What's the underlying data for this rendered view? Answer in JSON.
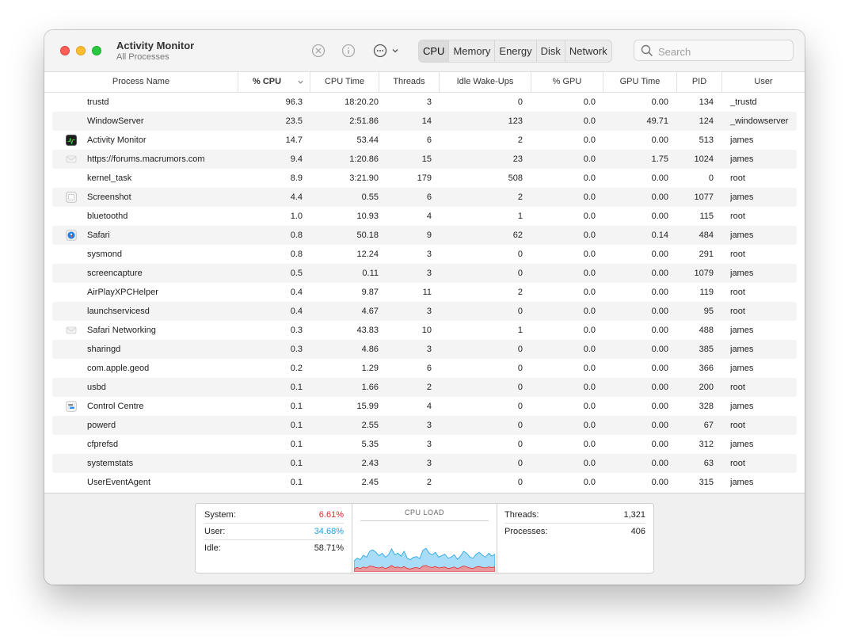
{
  "titlebar": {
    "title": "Activity Monitor",
    "subtitle": "All Processes"
  },
  "toolbar": {
    "icons": [
      "stop-icon",
      "info-icon",
      "more-icon",
      "chevron-down-icon"
    ],
    "tabs": [
      "CPU",
      "Memory",
      "Energy",
      "Disk",
      "Network"
    ],
    "active_tab": "CPU",
    "search_placeholder": "Search"
  },
  "table": {
    "columns": [
      "Process Name",
      "% CPU",
      "CPU Time",
      "Threads",
      "Idle Wake-Ups",
      "% GPU",
      "GPU Time",
      "PID",
      "User"
    ],
    "sorted_column": "% CPU",
    "rows": [
      {
        "name": "trustd",
        "icon": "",
        "cpu": "96.3",
        "time": "18:20.20",
        "threads": "3",
        "wakeups": "0",
        "gpu": "0.0",
        "gputime": "0.00",
        "pid": "134",
        "user": "_trustd"
      },
      {
        "name": "WindowServer",
        "icon": "",
        "cpu": "23.5",
        "time": "2:51.86",
        "threads": "14",
        "wakeups": "123",
        "gpu": "0.0",
        "gputime": "49.71",
        "pid": "124",
        "user": "_windowserver"
      },
      {
        "name": "Activity Monitor",
        "icon": "activity-monitor-icon",
        "cpu": "14.7",
        "time": "53.44",
        "threads": "6",
        "wakeups": "2",
        "gpu": "0.0",
        "gputime": "0.00",
        "pid": "513",
        "user": "james"
      },
      {
        "name": "https://forums.macrumors.com",
        "icon": "web-content-icon",
        "cpu": "9.4",
        "time": "1:20.86",
        "threads": "15",
        "wakeups": "23",
        "gpu": "0.0",
        "gputime": "1.75",
        "pid": "1024",
        "user": "james"
      },
      {
        "name": "kernel_task",
        "icon": "",
        "cpu": "8.9",
        "time": "3:21.90",
        "threads": "179",
        "wakeups": "508",
        "gpu": "0.0",
        "gputime": "0.00",
        "pid": "0",
        "user": "root"
      },
      {
        "name": "Screenshot",
        "icon": "screenshot-icon",
        "cpu": "4.4",
        "time": "0.55",
        "threads": "6",
        "wakeups": "2",
        "gpu": "0.0",
        "gputime": "0.00",
        "pid": "1077",
        "user": "james"
      },
      {
        "name": "bluetoothd",
        "icon": "",
        "cpu": "1.0",
        "time": "10.93",
        "threads": "4",
        "wakeups": "1",
        "gpu": "0.0",
        "gputime": "0.00",
        "pid": "115",
        "user": "root"
      },
      {
        "name": "Safari",
        "icon": "safari-icon",
        "cpu": "0.8",
        "time": "50.18",
        "threads": "9",
        "wakeups": "62",
        "gpu": "0.0",
        "gputime": "0.14",
        "pid": "484",
        "user": "james"
      },
      {
        "name": "sysmond",
        "icon": "",
        "cpu": "0.8",
        "time": "12.24",
        "threads": "3",
        "wakeups": "0",
        "gpu": "0.0",
        "gputime": "0.00",
        "pid": "291",
        "user": "root"
      },
      {
        "name": "screencapture",
        "icon": "",
        "cpu": "0.5",
        "time": "0.11",
        "threads": "3",
        "wakeups": "0",
        "gpu": "0.0",
        "gputime": "0.00",
        "pid": "1079",
        "user": "james"
      },
      {
        "name": "AirPlayXPCHelper",
        "icon": "",
        "cpu": "0.4",
        "time": "9.87",
        "threads": "11",
        "wakeups": "2",
        "gpu": "0.0",
        "gputime": "0.00",
        "pid": "119",
        "user": "root"
      },
      {
        "name": "launchservicesd",
        "icon": "",
        "cpu": "0.4",
        "time": "4.67",
        "threads": "3",
        "wakeups": "0",
        "gpu": "0.0",
        "gputime": "0.00",
        "pid": "95",
        "user": "root"
      },
      {
        "name": "Safari Networking",
        "icon": "web-content-icon",
        "cpu": "0.3",
        "time": "43.83",
        "threads": "10",
        "wakeups": "1",
        "gpu": "0.0",
        "gputime": "0.00",
        "pid": "488",
        "user": "james"
      },
      {
        "name": "sharingd",
        "icon": "",
        "cpu": "0.3",
        "time": "4.86",
        "threads": "3",
        "wakeups": "0",
        "gpu": "0.0",
        "gputime": "0.00",
        "pid": "385",
        "user": "james"
      },
      {
        "name": "com.apple.geod",
        "icon": "",
        "cpu": "0.2",
        "time": "1.29",
        "threads": "6",
        "wakeups": "0",
        "gpu": "0.0",
        "gputime": "0.00",
        "pid": "366",
        "user": "james"
      },
      {
        "name": "usbd",
        "icon": "",
        "cpu": "0.1",
        "time": "1.66",
        "threads": "2",
        "wakeups": "0",
        "gpu": "0.0",
        "gputime": "0.00",
        "pid": "200",
        "user": "root"
      },
      {
        "name": "Control Centre",
        "icon": "control-centre-icon",
        "cpu": "0.1",
        "time": "15.99",
        "threads": "4",
        "wakeups": "0",
        "gpu": "0.0",
        "gputime": "0.00",
        "pid": "328",
        "user": "james"
      },
      {
        "name": "powerd",
        "icon": "",
        "cpu": "0.1",
        "time": "2.55",
        "threads": "3",
        "wakeups": "0",
        "gpu": "0.0",
        "gputime": "0.00",
        "pid": "67",
        "user": "root"
      },
      {
        "name": "cfprefsd",
        "icon": "",
        "cpu": "0.1",
        "time": "5.35",
        "threads": "3",
        "wakeups": "0",
        "gpu": "0.0",
        "gputime": "0.00",
        "pid": "312",
        "user": "james"
      },
      {
        "name": "systemstats",
        "icon": "",
        "cpu": "0.1",
        "time": "2.43",
        "threads": "3",
        "wakeups": "0",
        "gpu": "0.0",
        "gputime": "0.00",
        "pid": "63",
        "user": "root"
      },
      {
        "name": "UserEventAgent",
        "icon": "",
        "cpu": "0.1",
        "time": "2.45",
        "threads": "2",
        "wakeups": "0",
        "gpu": "0.0",
        "gputime": "0.00",
        "pid": "315",
        "user": "james"
      }
    ]
  },
  "summary": {
    "system_label": "System:",
    "system_value": "6.61%",
    "system_color": "#e8262b",
    "user_label": "User:",
    "user_value": "34.68%",
    "user_color": "#1aa1e6",
    "idle_label": "Idle:",
    "idle_value": "58.71%",
    "chart_title": "CPU LOAD",
    "threads_label": "Threads:",
    "threads_value": "1,321",
    "processes_label": "Processes:",
    "processes_value": "406"
  },
  "cpu_load_history": {
    "total_pct": [
      22,
      28,
      25,
      34,
      30,
      42,
      45,
      40,
      33,
      38,
      30,
      35,
      47,
      35,
      38,
      32,
      42,
      28,
      25,
      30,
      31,
      27,
      44,
      48,
      38,
      35,
      40,
      30,
      33,
      36,
      28,
      30,
      35,
      26,
      32,
      42,
      38,
      30,
      28,
      36,
      40,
      34,
      30,
      38,
      32,
      36
    ],
    "system_pct": [
      6,
      9,
      7,
      10,
      8,
      12,
      11,
      9,
      8,
      10,
      7,
      9,
      13,
      9,
      10,
      8,
      11,
      7,
      6,
      8,
      9,
      7,
      12,
      13,
      10,
      9,
      11,
      8,
      9,
      10,
      7,
      8,
      10,
      7,
      9,
      12,
      10,
      8,
      7,
      10,
      11,
      9,
      8,
      10,
      9,
      10
    ]
  }
}
